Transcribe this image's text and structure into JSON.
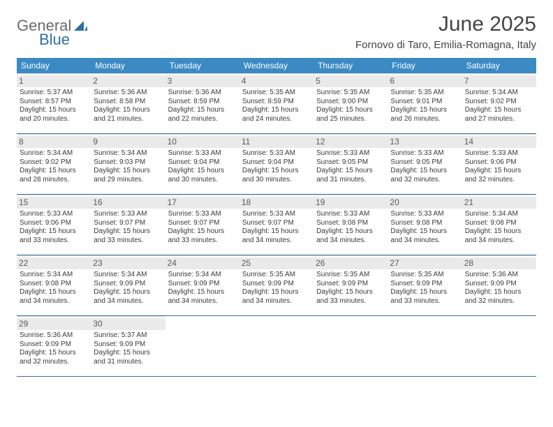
{
  "logo": {
    "text1": "General",
    "text2": "Blue"
  },
  "title": "June 2025",
  "subtitle": "Fornovo di Taro, Emilia-Romagna, Italy",
  "colors": {
    "header_bg": "#3b8ac4",
    "header_text": "#ffffff",
    "daynum_bg": "#eaeaea",
    "rule": "#3b6f94",
    "logo_gray": "#6a6a6a",
    "logo_blue": "#2f6fa6"
  },
  "dow": [
    "Sunday",
    "Monday",
    "Tuesday",
    "Wednesday",
    "Thursday",
    "Friday",
    "Saturday"
  ],
  "weeks": [
    [
      {
        "n": "1",
        "sr": "Sunrise: 5:37 AM",
        "ss": "Sunset: 8:57 PM",
        "dl": "Daylight: 15 hours and 20 minutes."
      },
      {
        "n": "2",
        "sr": "Sunrise: 5:36 AM",
        "ss": "Sunset: 8:58 PM",
        "dl": "Daylight: 15 hours and 21 minutes."
      },
      {
        "n": "3",
        "sr": "Sunrise: 5:36 AM",
        "ss": "Sunset: 8:59 PM",
        "dl": "Daylight: 15 hours and 22 minutes."
      },
      {
        "n": "4",
        "sr": "Sunrise: 5:35 AM",
        "ss": "Sunset: 8:59 PM",
        "dl": "Daylight: 15 hours and 24 minutes."
      },
      {
        "n": "5",
        "sr": "Sunrise: 5:35 AM",
        "ss": "Sunset: 9:00 PM",
        "dl": "Daylight: 15 hours and 25 minutes."
      },
      {
        "n": "6",
        "sr": "Sunrise: 5:35 AM",
        "ss": "Sunset: 9:01 PM",
        "dl": "Daylight: 15 hours and 26 minutes."
      },
      {
        "n": "7",
        "sr": "Sunrise: 5:34 AM",
        "ss": "Sunset: 9:02 PM",
        "dl": "Daylight: 15 hours and 27 minutes."
      }
    ],
    [
      {
        "n": "8",
        "sr": "Sunrise: 5:34 AM",
        "ss": "Sunset: 9:02 PM",
        "dl": "Daylight: 15 hours and 28 minutes."
      },
      {
        "n": "9",
        "sr": "Sunrise: 5:34 AM",
        "ss": "Sunset: 9:03 PM",
        "dl": "Daylight: 15 hours and 29 minutes."
      },
      {
        "n": "10",
        "sr": "Sunrise: 5:33 AM",
        "ss": "Sunset: 9:04 PM",
        "dl": "Daylight: 15 hours and 30 minutes."
      },
      {
        "n": "11",
        "sr": "Sunrise: 5:33 AM",
        "ss": "Sunset: 9:04 PM",
        "dl": "Daylight: 15 hours and 30 minutes."
      },
      {
        "n": "12",
        "sr": "Sunrise: 5:33 AM",
        "ss": "Sunset: 9:05 PM",
        "dl": "Daylight: 15 hours and 31 minutes."
      },
      {
        "n": "13",
        "sr": "Sunrise: 5:33 AM",
        "ss": "Sunset: 9:05 PM",
        "dl": "Daylight: 15 hours and 32 minutes."
      },
      {
        "n": "14",
        "sr": "Sunrise: 5:33 AM",
        "ss": "Sunset: 9:06 PM",
        "dl": "Daylight: 15 hours and 32 minutes."
      }
    ],
    [
      {
        "n": "15",
        "sr": "Sunrise: 5:33 AM",
        "ss": "Sunset: 9:06 PM",
        "dl": "Daylight: 15 hours and 33 minutes."
      },
      {
        "n": "16",
        "sr": "Sunrise: 5:33 AM",
        "ss": "Sunset: 9:07 PM",
        "dl": "Daylight: 15 hours and 33 minutes."
      },
      {
        "n": "17",
        "sr": "Sunrise: 5:33 AM",
        "ss": "Sunset: 9:07 PM",
        "dl": "Daylight: 15 hours and 33 minutes."
      },
      {
        "n": "18",
        "sr": "Sunrise: 5:33 AM",
        "ss": "Sunset: 9:07 PM",
        "dl": "Daylight: 15 hours and 34 minutes."
      },
      {
        "n": "19",
        "sr": "Sunrise: 5:33 AM",
        "ss": "Sunset: 9:08 PM",
        "dl": "Daylight: 15 hours and 34 minutes."
      },
      {
        "n": "20",
        "sr": "Sunrise: 5:33 AM",
        "ss": "Sunset: 9:08 PM",
        "dl": "Daylight: 15 hours and 34 minutes."
      },
      {
        "n": "21",
        "sr": "Sunrise: 5:34 AM",
        "ss": "Sunset: 9:08 PM",
        "dl": "Daylight: 15 hours and 34 minutes."
      }
    ],
    [
      {
        "n": "22",
        "sr": "Sunrise: 5:34 AM",
        "ss": "Sunset: 9:08 PM",
        "dl": "Daylight: 15 hours and 34 minutes."
      },
      {
        "n": "23",
        "sr": "Sunrise: 5:34 AM",
        "ss": "Sunset: 9:09 PM",
        "dl": "Daylight: 15 hours and 34 minutes."
      },
      {
        "n": "24",
        "sr": "Sunrise: 5:34 AM",
        "ss": "Sunset: 9:09 PM",
        "dl": "Daylight: 15 hours and 34 minutes."
      },
      {
        "n": "25",
        "sr": "Sunrise: 5:35 AM",
        "ss": "Sunset: 9:09 PM",
        "dl": "Daylight: 15 hours and 34 minutes."
      },
      {
        "n": "26",
        "sr": "Sunrise: 5:35 AM",
        "ss": "Sunset: 9:09 PM",
        "dl": "Daylight: 15 hours and 33 minutes."
      },
      {
        "n": "27",
        "sr": "Sunrise: 5:35 AM",
        "ss": "Sunset: 9:09 PM",
        "dl": "Daylight: 15 hours and 33 minutes."
      },
      {
        "n": "28",
        "sr": "Sunrise: 5:36 AM",
        "ss": "Sunset: 9:09 PM",
        "dl": "Daylight: 15 hours and 32 minutes."
      }
    ],
    [
      {
        "n": "29",
        "sr": "Sunrise: 5:36 AM",
        "ss": "Sunset: 9:09 PM",
        "dl": "Daylight: 15 hours and 32 minutes."
      },
      {
        "n": "30",
        "sr": "Sunrise: 5:37 AM",
        "ss": "Sunset: 9:09 PM",
        "dl": "Daylight: 15 hours and 31 minutes."
      },
      null,
      null,
      null,
      null,
      null
    ]
  ]
}
